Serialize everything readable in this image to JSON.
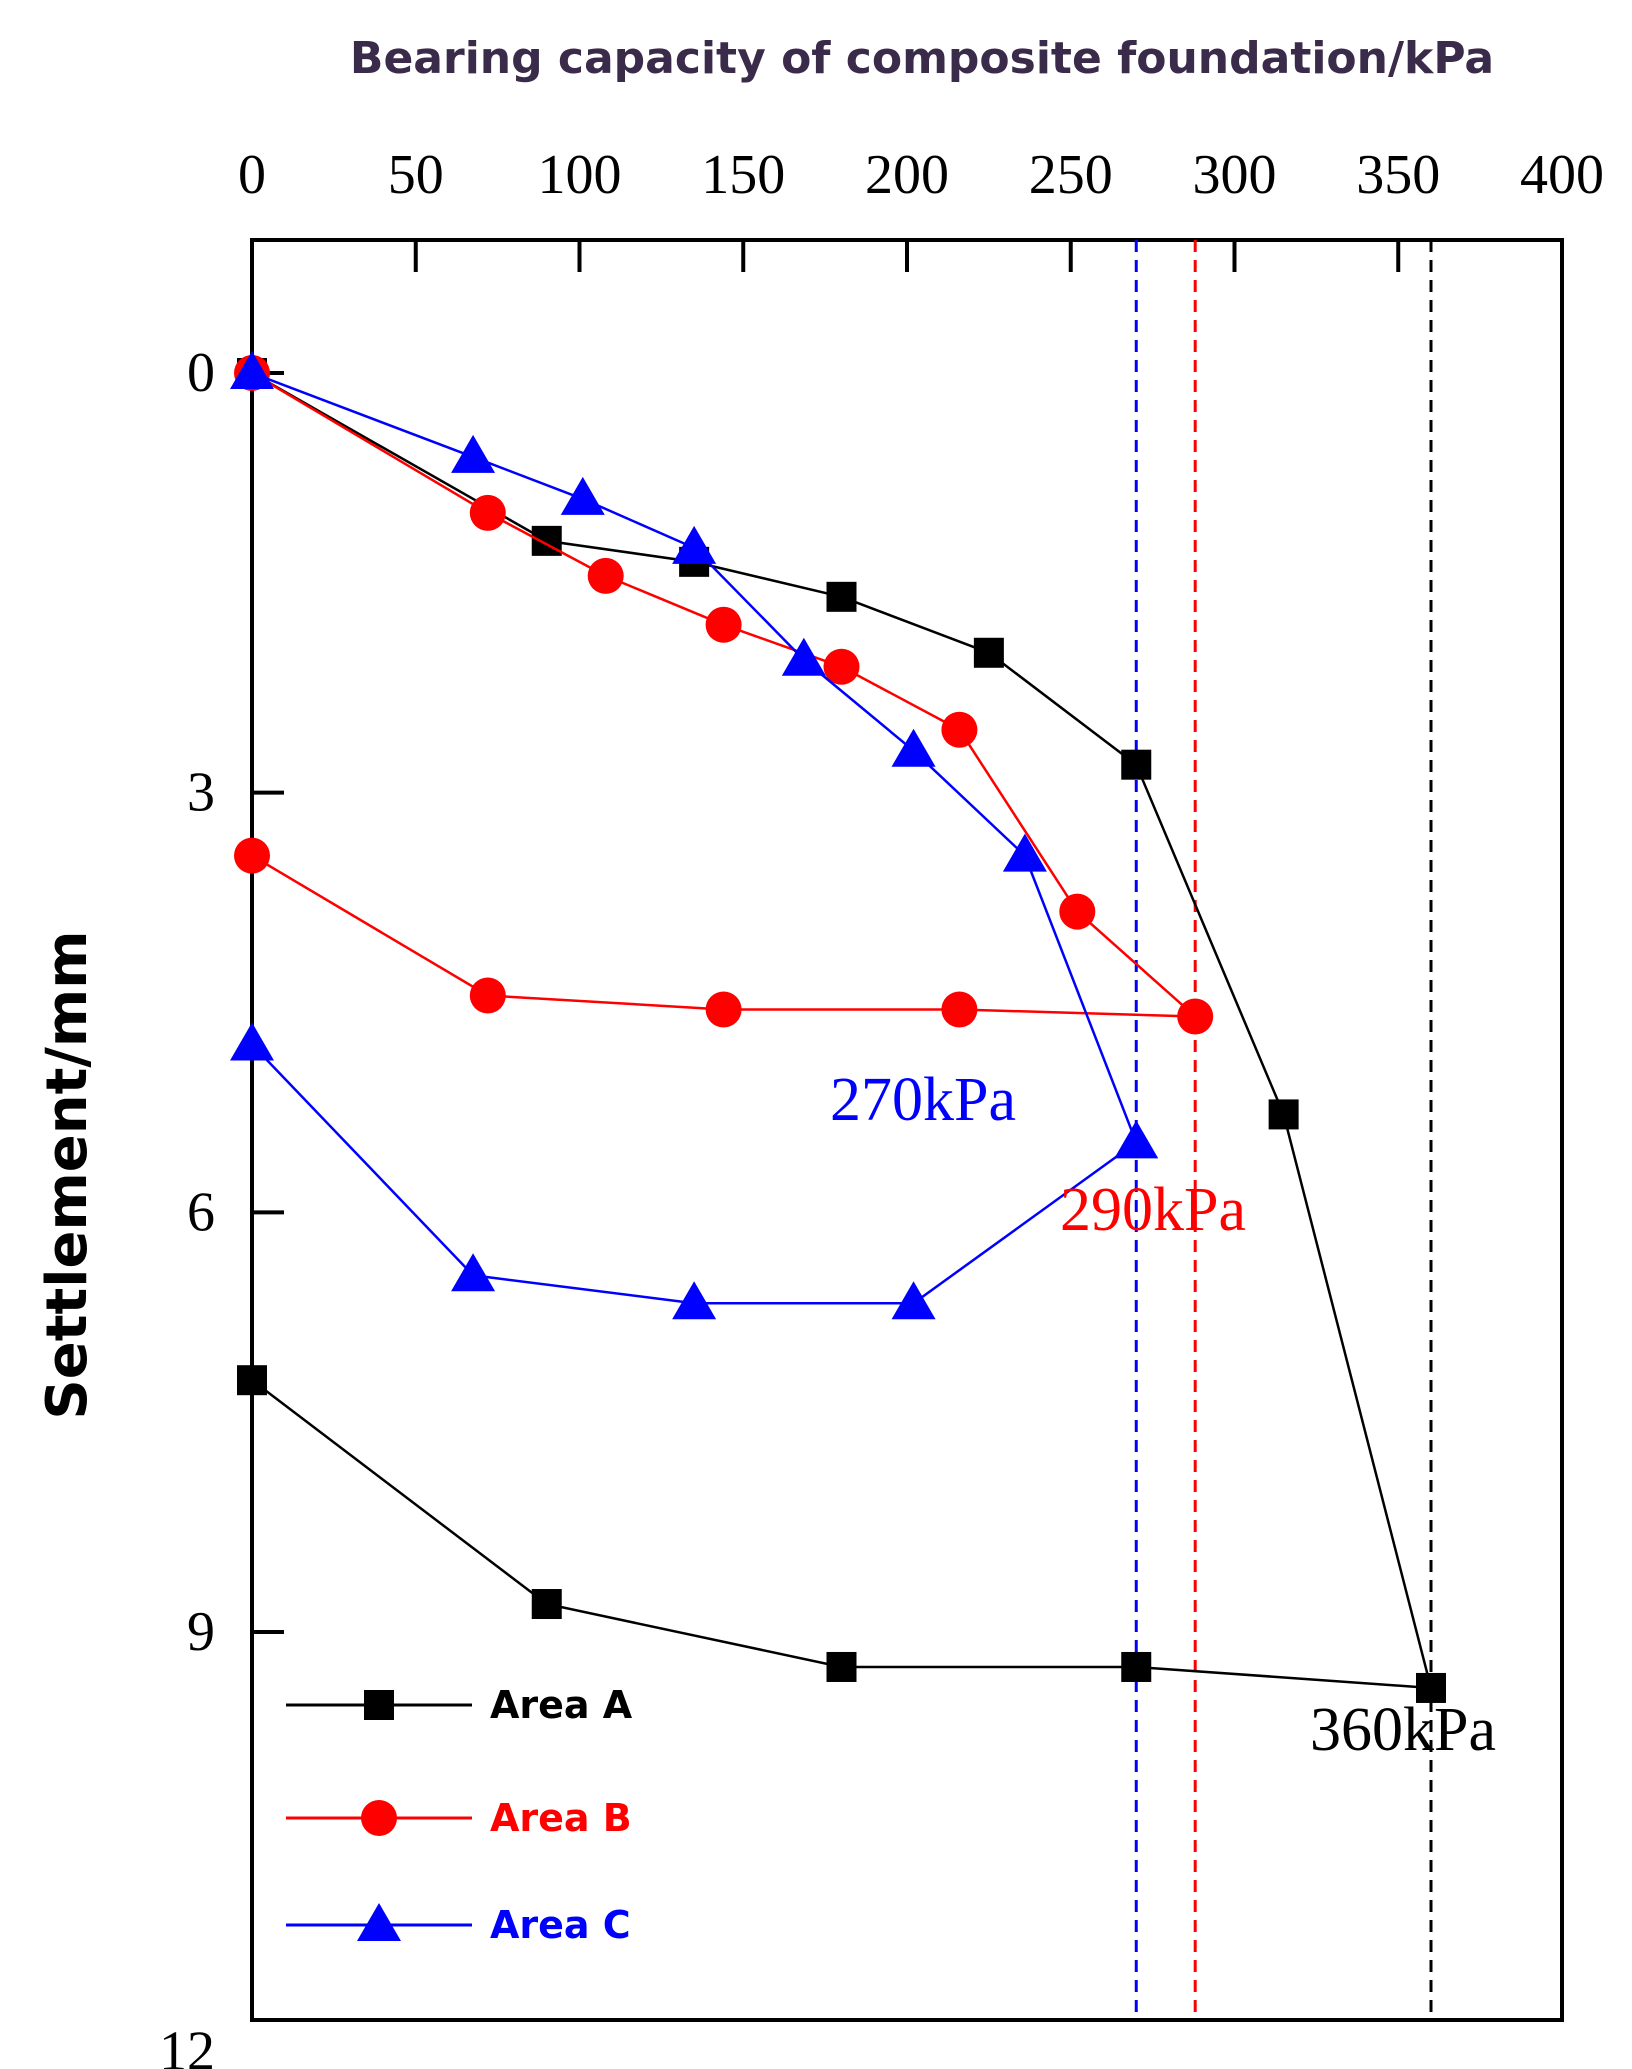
{
  "chart_data": {
    "type": "line",
    "title": "",
    "xlabel": "Bearing capacity of composite foundation/kPa",
    "ylabel": "Settlement/mm",
    "xlim": [
      0,
      400
    ],
    "ylim": [
      -1,
      12
    ],
    "y_inverted": true,
    "x_axis_position": "top",
    "x_ticks": [
      "0",
      "50",
      "100",
      "150",
      "200",
      "250",
      "300",
      "350",
      "400"
    ],
    "y_ticks": [
      "0",
      "3",
      "6",
      "9",
      "12"
    ],
    "grid": false,
    "legend_position": "bottom-left",
    "series": [
      {
        "name": "Area A",
        "color": "#000000",
        "marker": "square",
        "points": [
          [
            0,
            0
          ],
          [
            90,
            1.2
          ],
          [
            135,
            1.35
          ],
          [
            180,
            1.6
          ],
          [
            225,
            2.0
          ],
          [
            270,
            2.8
          ],
          [
            315,
            5.3
          ],
          [
            360,
            9.4
          ],
          [
            270,
            9.25
          ],
          [
            180,
            9.25
          ],
          [
            90,
            8.8
          ],
          [
            0,
            7.2
          ]
        ]
      },
      {
        "name": "Area B",
        "color": "#ff0000",
        "marker": "circle",
        "points": [
          [
            0,
            0
          ],
          [
            72,
            1.0
          ],
          [
            108,
            1.45
          ],
          [
            144,
            1.8
          ],
          [
            180,
            2.1
          ],
          [
            216,
            2.55
          ],
          [
            252,
            3.85
          ],
          [
            288,
            4.6
          ],
          [
            216,
            4.55
          ],
          [
            144,
            4.55
          ],
          [
            72,
            4.45
          ],
          [
            0,
            3.45
          ]
        ]
      },
      {
        "name": "Area C",
        "color": "#0000ff",
        "marker": "triangle",
        "points": [
          [
            0,
            0
          ],
          [
            67.5,
            0.6
          ],
          [
            101,
            0.9
          ],
          [
            135,
            1.25
          ],
          [
            168.5,
            2.05
          ],
          [
            202,
            2.7
          ],
          [
            236,
            3.45
          ],
          [
            270,
            5.5
          ],
          [
            202,
            6.65
          ],
          [
            135,
            6.65
          ],
          [
            67.5,
            6.45
          ],
          [
            0,
            4.8
          ]
        ]
      }
    ],
    "reference_lines": [
      {
        "x": 270,
        "color": "#0000ff",
        "label": "270kPa"
      },
      {
        "x": 288,
        "color": "#ff0000",
        "label": "290kPa"
      },
      {
        "x": 360,
        "color": "#000000",
        "label": "360kPa"
      }
    ]
  }
}
